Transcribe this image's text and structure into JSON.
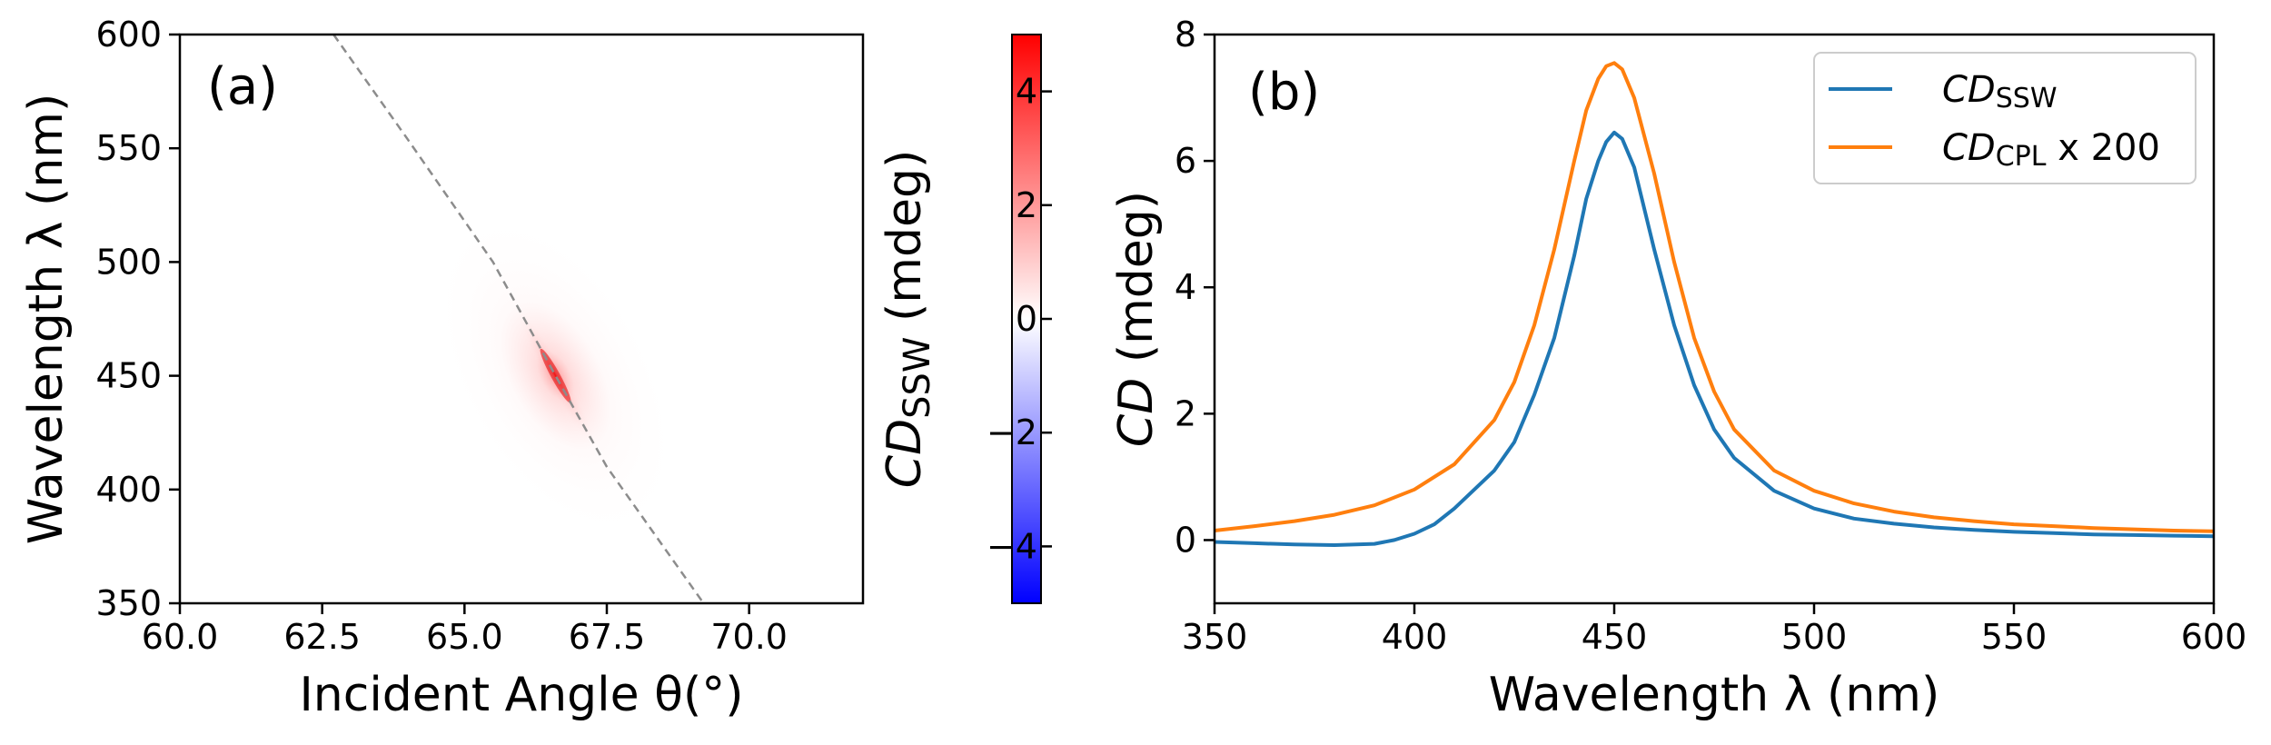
{
  "chart_data": [
    {
      "id": "panel-a",
      "type": "heatmap",
      "panel_label": "(a)",
      "xlabel": "Incident Angle θ(°)",
      "ylabel": "Wavelength λ (nm)",
      "xlim": [
        60.0,
        72.0
      ],
      "ylim": [
        350,
        600
      ],
      "xticks": [
        60.0,
        62.5,
        65.0,
        67.5,
        70.0
      ],
      "xtick_labels": [
        "60.0",
        "62.5",
        "65.0",
        "67.5",
        "70.0"
      ],
      "yticks": [
        350,
        400,
        450,
        500,
        550,
        600
      ],
      "ytick_labels": [
        "350",
        "400",
        "450",
        "500",
        "550",
        "600"
      ],
      "dashed_curve": {
        "x": [
          62.7,
          64.0,
          65.5,
          66.6,
          67.5,
          69.2
        ],
        "y": [
          600,
          554,
          500,
          450,
          410,
          350
        ]
      },
      "hotspot": {
        "theta": 66.6,
        "lambda": 450,
        "peak_value": 6.5
      },
      "colorbar": {
        "label_main": "CD",
        "label_sub": "SSW",
        "label_unit": " (mdeg)",
        "range": [
          -5,
          5
        ],
        "ticks": [
          4,
          2,
          0,
          -2,
          -4
        ],
        "tick_labels": [
          "4",
          "2",
          "0",
          "−2",
          "−4"
        ],
        "low_color": "#0000ff",
        "mid_color": "#ffffff",
        "high_color": "#ff0000"
      }
    },
    {
      "id": "panel-b",
      "type": "line",
      "panel_label": "(b)",
      "xlabel": "Wavelength λ (nm)",
      "ylabel_italic": "CD",
      "ylabel_rest": " (mdeg)",
      "xlim": [
        350,
        600
      ],
      "ylim": [
        -1,
        8
      ],
      "xticks": [
        350,
        400,
        450,
        500,
        550,
        600
      ],
      "xtick_labels": [
        "350",
        "400",
        "450",
        "500",
        "550",
        "600"
      ],
      "yticks": [
        0,
        2,
        4,
        6,
        8
      ],
      "ytick_labels": [
        "0",
        "2",
        "4",
        "6",
        "8"
      ],
      "legend_position": "top-right",
      "series": [
        {
          "name": "CD_SSW",
          "legend_main": "CD",
          "legend_sub": "SSW",
          "legend_suffix": "",
          "color": "#1f77b4",
          "x": [
            350,
            360,
            370,
            380,
            390,
            395,
            400,
            405,
            410,
            415,
            420,
            425,
            430,
            435,
            440,
            443,
            446,
            448,
            450,
            452,
            455,
            460,
            465,
            470,
            475,
            480,
            490,
            500,
            510,
            520,
            530,
            540,
            550,
            560,
            570,
            580,
            590,
            600
          ],
          "y": [
            -0.03,
            -0.05,
            -0.07,
            -0.08,
            -0.06,
            0.0,
            0.1,
            0.25,
            0.5,
            0.8,
            1.1,
            1.55,
            2.3,
            3.2,
            4.5,
            5.4,
            6.0,
            6.3,
            6.45,
            6.35,
            5.9,
            4.6,
            3.4,
            2.45,
            1.75,
            1.3,
            0.78,
            0.5,
            0.34,
            0.26,
            0.2,
            0.16,
            0.13,
            0.11,
            0.09,
            0.08,
            0.07,
            0.06
          ]
        },
        {
          "name": "CD_CPL x 200",
          "legend_main": "CD",
          "legend_sub": "CPL",
          "legend_suffix": " x 200",
          "color": "#ff7f0e",
          "x": [
            350,
            360,
            370,
            380,
            390,
            400,
            410,
            420,
            425,
            430,
            435,
            440,
            443,
            446,
            448,
            450,
            452,
            455,
            460,
            465,
            470,
            475,
            480,
            490,
            500,
            510,
            520,
            530,
            540,
            550,
            560,
            570,
            580,
            590,
            600
          ],
          "y": [
            0.15,
            0.22,
            0.3,
            0.4,
            0.55,
            0.8,
            1.2,
            1.9,
            2.5,
            3.4,
            4.6,
            6.0,
            6.8,
            7.3,
            7.5,
            7.55,
            7.45,
            7.0,
            5.8,
            4.4,
            3.2,
            2.35,
            1.75,
            1.1,
            0.78,
            0.58,
            0.45,
            0.36,
            0.3,
            0.25,
            0.22,
            0.19,
            0.17,
            0.15,
            0.14
          ]
        }
      ]
    }
  ]
}
